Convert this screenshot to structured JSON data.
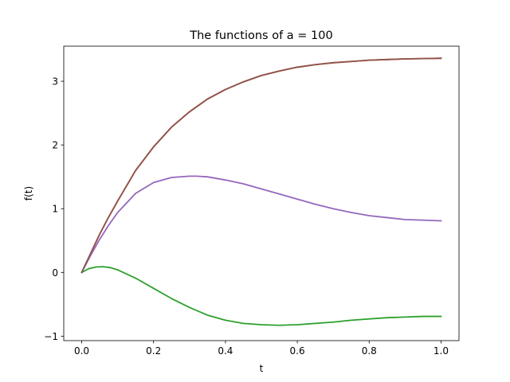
{
  "chart_data": {
    "type": "line",
    "title": "The functions of a = 100",
    "xlabel": "t",
    "ylabel": "f(t)",
    "xlim": [
      -0.05,
      1.05
    ],
    "ylim": [
      -1.07,
      3.55
    ],
    "xticks": [
      0.0,
      0.2,
      0.4,
      0.6,
      0.8,
      1.0
    ],
    "xtick_labels": [
      "0.0",
      "0.2",
      "0.4",
      "0.6",
      "0.8",
      "1.0"
    ],
    "yticks": [
      -1,
      0,
      1,
      2,
      3
    ],
    "ytick_labels": [
      "−1",
      "0",
      "1",
      "2",
      "3"
    ],
    "grid": false,
    "legend": "none",
    "series": [
      {
        "color": "#2ca02c",
        "x": [
          0.0,
          0.02,
          0.04,
          0.06,
          0.08,
          0.1,
          0.15,
          0.2,
          0.25,
          0.3,
          0.35,
          0.4,
          0.45,
          0.5,
          0.55,
          0.6,
          0.65,
          0.7,
          0.75,
          0.8,
          0.85,
          0.9,
          0.95,
          1.0
        ],
        "y": [
          0.0,
          0.06,
          0.085,
          0.09,
          0.075,
          0.04,
          -0.09,
          -0.25,
          -0.41,
          -0.55,
          -0.67,
          -0.75,
          -0.8,
          -0.82,
          -0.83,
          -0.82,
          -0.8,
          -0.78,
          -0.75,
          -0.73,
          -0.71,
          -0.7,
          -0.69,
          -0.69
        ]
      },
      {
        "color": "#d62728",
        "x": [
          0.0,
          0.025,
          0.05,
          0.075,
          0.1,
          0.15,
          0.2,
          0.25,
          0.3,
          0.35,
          0.4,
          0.45,
          0.5,
          0.55,
          0.6,
          0.65,
          0.7,
          0.75,
          0.8,
          0.85,
          0.9,
          0.95,
          1.0
        ],
        "y": [
          0.0,
          0.3,
          0.6,
          0.87,
          1.12,
          1.6,
          1.97,
          2.28,
          2.52,
          2.72,
          2.87,
          2.99,
          3.09,
          3.16,
          3.22,
          3.26,
          3.29,
          3.31,
          3.33,
          3.34,
          3.35,
          3.355,
          3.36
        ]
      },
      {
        "color": "#9467bd",
        "x": [
          0.0,
          0.025,
          0.05,
          0.075,
          0.1,
          0.15,
          0.2,
          0.25,
          0.3,
          0.32,
          0.35,
          0.4,
          0.45,
          0.5,
          0.55,
          0.6,
          0.65,
          0.7,
          0.75,
          0.8,
          0.85,
          0.9,
          0.95,
          1.0
        ],
        "y": [
          0.0,
          0.27,
          0.52,
          0.74,
          0.94,
          1.24,
          1.41,
          1.49,
          1.51,
          1.51,
          1.5,
          1.45,
          1.39,
          1.31,
          1.23,
          1.15,
          1.07,
          1.0,
          0.94,
          0.89,
          0.86,
          0.83,
          0.82,
          0.81
        ]
      },
      {
        "color": "#8c564b",
        "x": [
          0.0,
          0.025,
          0.05,
          0.075,
          0.1,
          0.15,
          0.2,
          0.25,
          0.3,
          0.35,
          0.4,
          0.45,
          0.5,
          0.55,
          0.6,
          0.65,
          0.7,
          0.75,
          0.8,
          0.85,
          0.9,
          0.95,
          1.0
        ],
        "y": [
          0.0,
          0.3,
          0.6,
          0.87,
          1.12,
          1.6,
          1.97,
          2.28,
          2.52,
          2.72,
          2.87,
          2.99,
          3.09,
          3.16,
          3.22,
          3.26,
          3.29,
          3.31,
          3.33,
          3.34,
          3.35,
          3.355,
          3.36
        ]
      }
    ]
  }
}
